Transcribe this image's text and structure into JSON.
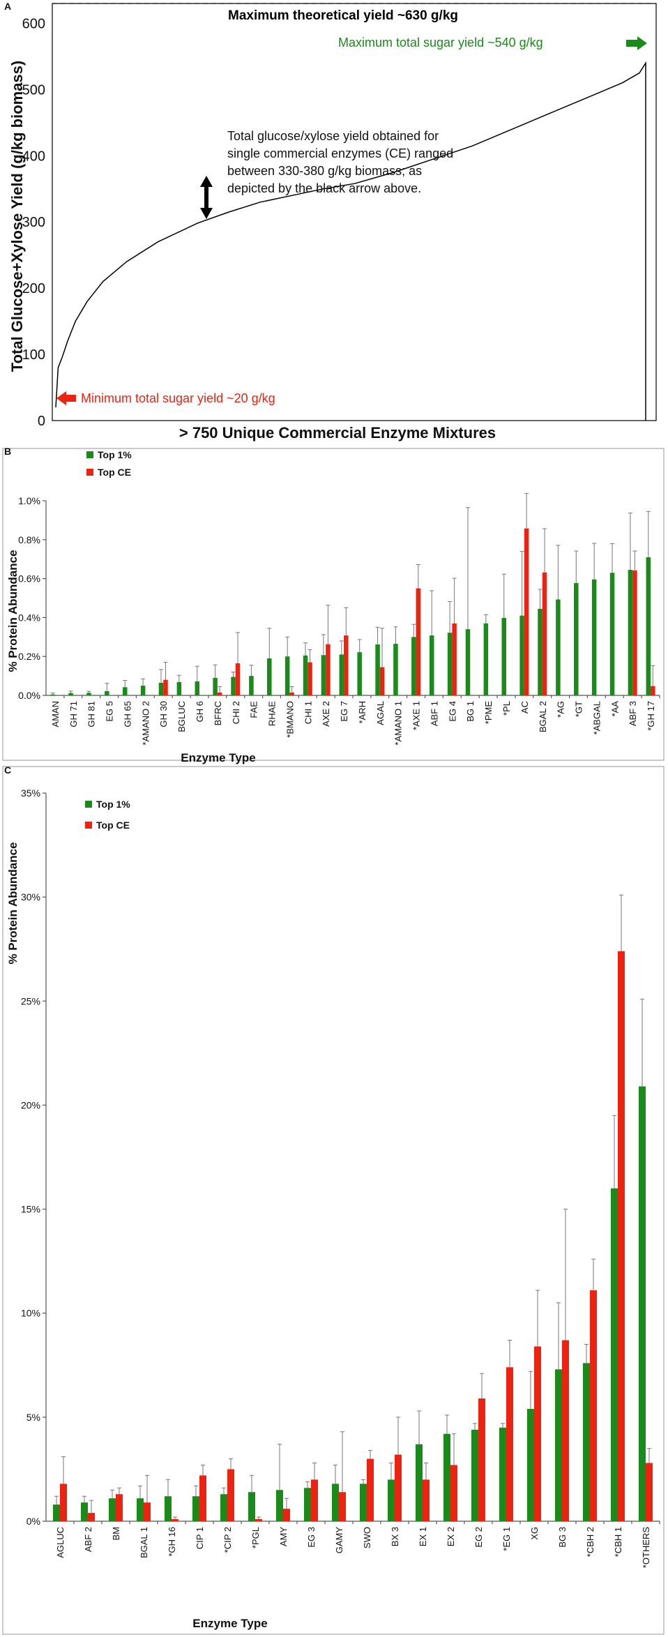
{
  "colors": {
    "green": "#1a8a1a",
    "red": "#ee2211",
    "black": "#000000"
  },
  "chart_data": [
    {
      "panel": "A",
      "type": "line",
      "ylabel": "Total Glucose+Xylose Yield (g/kg biomass)",
      "xlabel": "> 750 Unique Commercial Enzyme Mixtures",
      "ylim": [
        0,
        630
      ],
      "yticks": [
        0,
        100,
        200,
        300,
        400,
        500,
        600
      ],
      "x_range": [
        0,
        750
      ],
      "curve": [
        [
          0,
          20
        ],
        [
          3,
          80
        ],
        [
          8,
          95
        ],
        [
          15,
          120
        ],
        [
          25,
          150
        ],
        [
          40,
          180
        ],
        [
          60,
          210
        ],
        [
          90,
          240
        ],
        [
          130,
          270
        ],
        [
          180,
          298
        ],
        [
          220,
          315
        ],
        [
          260,
          330
        ],
        [
          300,
          340
        ],
        [
          340,
          350
        ],
        [
          380,
          358
        ],
        [
          430,
          375
        ],
        [
          480,
          395
        ],
        [
          530,
          415
        ],
        [
          580,
          440
        ],
        [
          630,
          465
        ],
        [
          680,
          490
        ],
        [
          720,
          510
        ],
        [
          742,
          525
        ],
        [
          750,
          540
        ]
      ],
      "reference_line": {
        "y": 630,
        "style": "dashed",
        "label": "Maximum theoretical yield ~630 g/kg"
      },
      "annotations": {
        "max": "Maximum total sugar yield ~540 g/kg",
        "min": "Minimum total sugar yield ~20 g/kg",
        "ce_lines": [
          "Total glucose/xylose yield obtained for",
          "single commercial enzymes (CE) ranged",
          "between 330-380 g/kg biomass; as",
          "depicted by the black arrow above."
        ]
      }
    },
    {
      "panel": "B",
      "type": "bar",
      "ylabel": "% Protein Abundance",
      "xlabel": "Enzyme Type",
      "ylim": [
        0,
        1.0
      ],
      "yticks": [
        "0.0%",
        "0.2%",
        "0.4%",
        "0.6%",
        "0.8%",
        "1.0%"
      ],
      "categories": [
        "AMAN",
        "GH 71",
        "GH 81",
        "EG 5",
        "GH 65",
        "*AMANO 2",
        "GH 30",
        "BGLUC",
        "GH 6",
        "BFRC",
        "CHI 2",
        "FAE",
        "RHAE",
        "*BMANO",
        "CHI 1",
        "AXE 2",
        "EG 7",
        "*ARH",
        "AGAL",
        "*AMANO 1",
        "*AXE 1",
        "ABF 1",
        "EG 4",
        "BG 1",
        "*PME",
        "*PL",
        "AC",
        "BGAL 2",
        "*AG",
        "*GT",
        "*ABGAL",
        "*AA",
        "ABF 3",
        "*GH 17"
      ],
      "series": [
        {
          "name": "Top 1%",
          "values": [
            0.005,
            0.012,
            0.013,
            0.022,
            0.042,
            0.05,
            0.065,
            0.068,
            0.072,
            0.09,
            0.095,
            0.1,
            0.19,
            0.2,
            0.205,
            0.207,
            0.21,
            0.222,
            0.262,
            0.265,
            0.3,
            0.308,
            0.322,
            0.34,
            0.37,
            0.398,
            0.41,
            0.445,
            0.493,
            0.577,
            0.596,
            0.63,
            0.645,
            0.71
          ],
          "errors": [
            0.008,
            0.01,
            0.008,
            0.04,
            0.035,
            0.035,
            0.068,
            0.035,
            0.078,
            0.067,
            0.025,
            0.055,
            0.155,
            0.1,
            0.065,
            0.105,
            0.07,
            0.065,
            0.088,
            0.087,
            0.065,
            0.23,
            0.16,
            0.625,
            0.045,
            0.225,
            0.33,
            0.1,
            0.278,
            0.165,
            0.185,
            0.15,
            0.292,
            0.235
          ]
        },
        {
          "name": "Top CE",
          "values": [
            null,
            null,
            null,
            null,
            null,
            null,
            0.08,
            null,
            null,
            0.015,
            0.165,
            null,
            null,
            0.015,
            0.17,
            0.263,
            0.308,
            null,
            0.145,
            null,
            0.55,
            null,
            0.37,
            null,
            null,
            null,
            0.858,
            0.632,
            null,
            null,
            null,
            null,
            0.642,
            0.048
          ],
          "errors": [
            null,
            null,
            null,
            null,
            null,
            null,
            0.09,
            null,
            null,
            0.03,
            0.158,
            null,
            null,
            0.03,
            0.065,
            0.2,
            0.143,
            null,
            0.2,
            null,
            0.122,
            null,
            0.232,
            null,
            null,
            null,
            0.18,
            0.225,
            null,
            null,
            null,
            null,
            0.1,
            0.105
          ]
        }
      ]
    },
    {
      "panel": "C",
      "type": "bar",
      "ylabel": "% Protein Abundance",
      "xlabel": "Enzyme Type",
      "ylim": [
        0,
        35
      ],
      "yticks": [
        "0%",
        "5%",
        "10%",
        "15%",
        "20%",
        "25%",
        "30%",
        "35%"
      ],
      "categories": [
        "AGLUC",
        "ABF 2",
        "BM",
        "BGAL 1",
        "*GH 16",
        "CIP 1",
        "*CIP 2",
        "*PGL",
        "AMY",
        "EG 3",
        "GAMY",
        "SWO",
        "BX 3",
        "EX 1",
        "EX 2",
        "EG 2",
        "*EG 1",
        "XG",
        "BG 3",
        "*CBH 2",
        "*CBH 1",
        "*OTHERS"
      ],
      "series": [
        {
          "name": "Top 1%",
          "values": [
            0.8,
            0.9,
            1.1,
            1.1,
            1.2,
            1.2,
            1.3,
            1.4,
            1.5,
            1.6,
            1.8,
            1.8,
            2.0,
            3.7,
            4.2,
            4.4,
            4.5,
            5.4,
            7.3,
            7.6,
            16.0,
            20.9
          ],
          "errors": [
            0.4,
            0.3,
            0.4,
            0.6,
            0.8,
            0.5,
            0.3,
            0.8,
            2.2,
            0.3,
            0.9,
            0.2,
            0.8,
            1.6,
            0.9,
            0.3,
            0.2,
            1.8,
            3.2,
            0.9,
            3.5,
            4.2
          ]
        },
        {
          "name": "Top CE",
          "values": [
            1.8,
            0.4,
            1.3,
            0.9,
            0.1,
            2.2,
            2.5,
            0.1,
            0.6,
            2.0,
            1.4,
            3.0,
            3.2,
            2.0,
            2.7,
            5.9,
            7.4,
            8.4,
            8.7,
            11.1,
            27.4,
            2.8
          ],
          "errors": [
            1.3,
            0.6,
            0.3,
            1.3,
            0.1,
            0.5,
            0.5,
            0.1,
            0.5,
            0.8,
            2.9,
            0.4,
            1.8,
            0.8,
            1.5,
            1.2,
            1.3,
            2.7,
            6.3,
            1.5,
            2.7,
            0.7
          ]
        }
      ]
    }
  ]
}
